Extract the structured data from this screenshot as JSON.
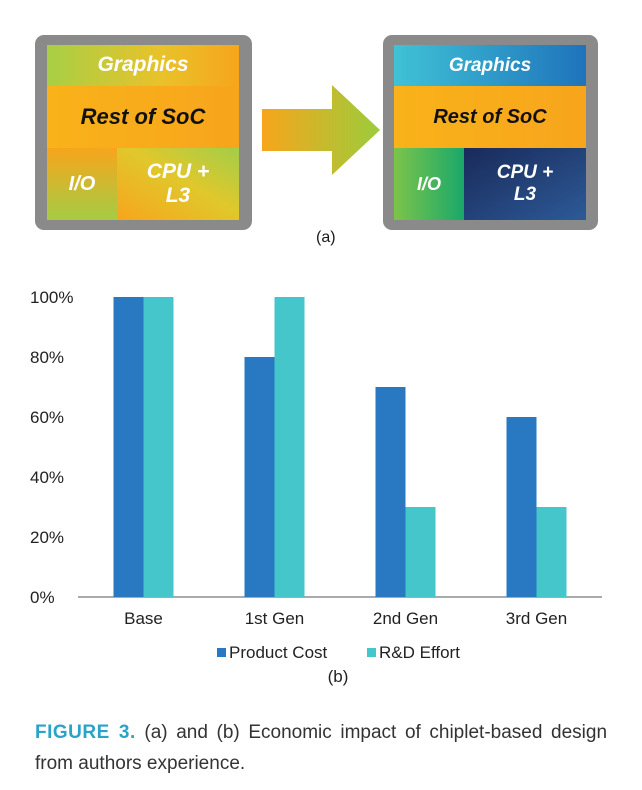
{
  "diagram": {
    "before": {
      "graphics": "Graphics",
      "rest": "Rest of SoC",
      "io": "I/O",
      "cpu_line1": "CPU +",
      "cpu_line2": "L3"
    },
    "after": {
      "graphics": "Graphics",
      "rest": "Rest of SoC",
      "io": "I/O",
      "cpu_line1": "CPU +",
      "cpu_line2": "L3"
    },
    "label": "(a)",
    "colors": {
      "die": "#8a8a8a",
      "orange": "#f7a51c",
      "yellow_green": "#c8d43a",
      "cyan": "#33b8d4",
      "blue": "#1f6fb8",
      "green": "#22b060",
      "navy": "#1b2a5c"
    }
  },
  "chart_data": {
    "type": "bar",
    "categories": [
      "Base",
      "1st Gen",
      "2nd Gen",
      "3rd Gen"
    ],
    "series": [
      {
        "name": "Product Cost",
        "values": [
          100,
          80,
          70,
          60
        ],
        "color": "#2878c2"
      },
      {
        "name": "R&D Effort",
        "values": [
          100,
          100,
          30,
          30
        ],
        "color": "#44c6cb"
      }
    ],
    "ylim": [
      0,
      100
    ],
    "yticks": [
      "0%",
      "20%",
      "40%",
      "60%",
      "80%",
      "100%"
    ],
    "grid": false,
    "legend": "bottom",
    "label": "(b)"
  },
  "caption": {
    "figure": "FIGURE 3.",
    "text": " (a) and (b) Economic impact of chiplet-based design from authors experience."
  }
}
